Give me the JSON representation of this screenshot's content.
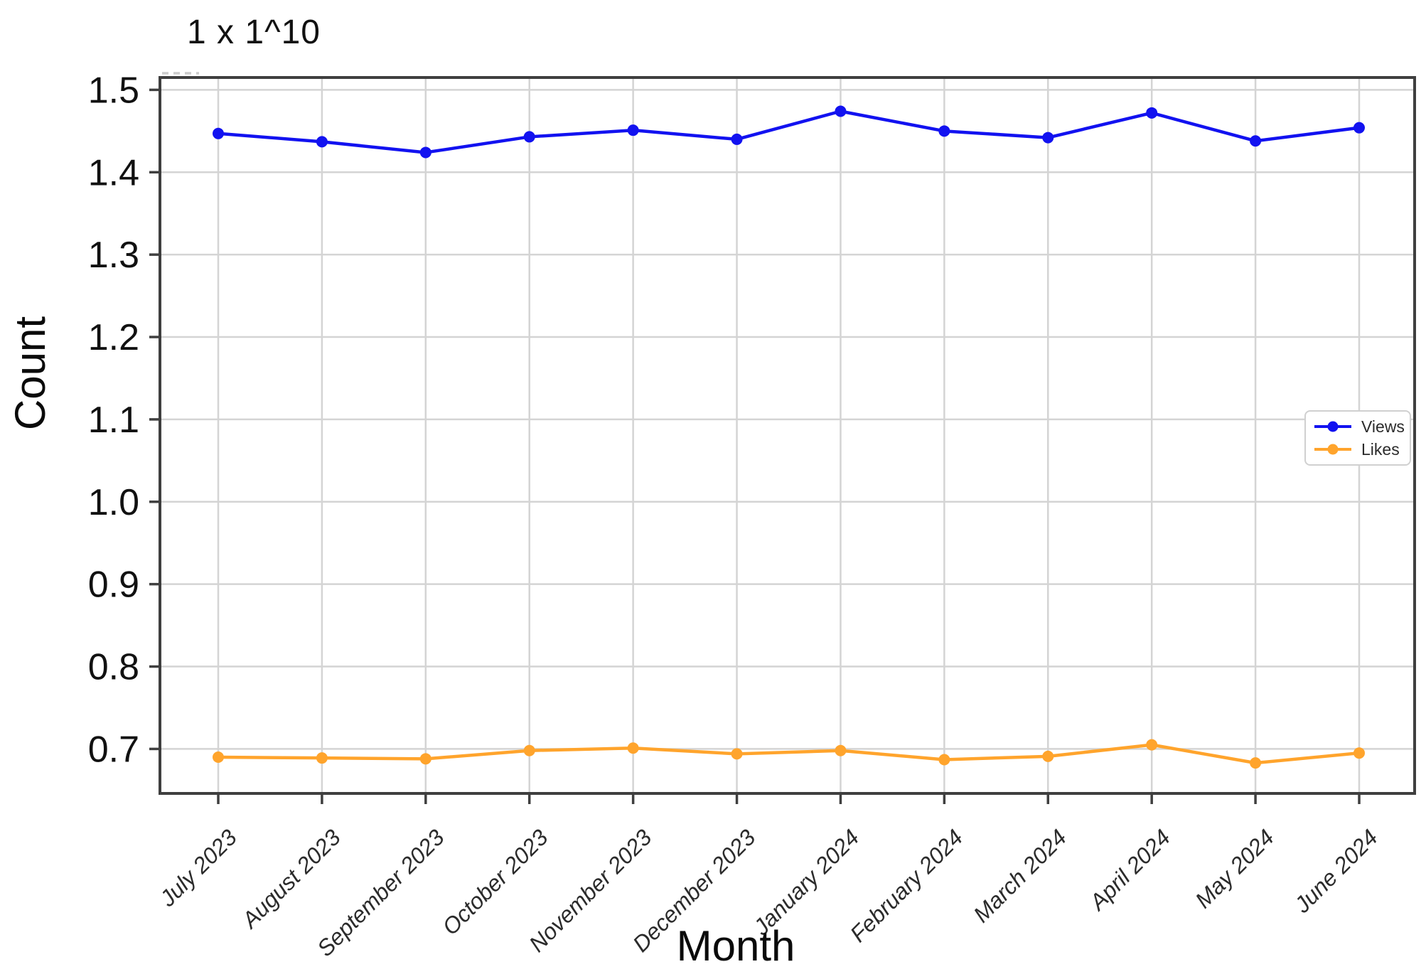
{
  "chart_data": {
    "type": "line",
    "y_multiplier_text": "1 x 1^10",
    "xlabel": "Month",
    "ylabel": "Count",
    "categories": [
      "July 2023",
      "August 2023",
      "September 2023",
      "October 2023",
      "November 2023",
      "December 2023",
      "January 2024",
      "February 2024",
      "March 2024",
      "April 2024",
      "May 2024",
      "June 2024"
    ],
    "series": [
      {
        "name": "Views",
        "color": "#1212F0",
        "values": [
          1.447,
          1.437,
          1.424,
          1.443,
          1.451,
          1.44,
          1.474,
          1.45,
          1.442,
          1.472,
          1.438,
          1.454
        ]
      },
      {
        "name": "Likes",
        "color": "#FFA42C",
        "values": [
          0.69,
          0.689,
          0.688,
          0.698,
          0.701,
          0.694,
          0.698,
          0.687,
          0.691,
          0.705,
          0.683,
          0.695
        ]
      }
    ],
    "yticks": [
      1.5,
      1.4,
      1.3,
      1.2,
      1.1,
      1.0,
      0.9,
      0.8,
      0.7
    ],
    "ylim": [
      0.646,
      1.515
    ],
    "grid": true,
    "legend_position": "center right",
    "marker": "circle"
  },
  "colors": {
    "grid": "#D4D4D4",
    "spine": "#3F3F3F",
    "tick": "#3F3F3F",
    "background": "#FFFFFF"
  }
}
